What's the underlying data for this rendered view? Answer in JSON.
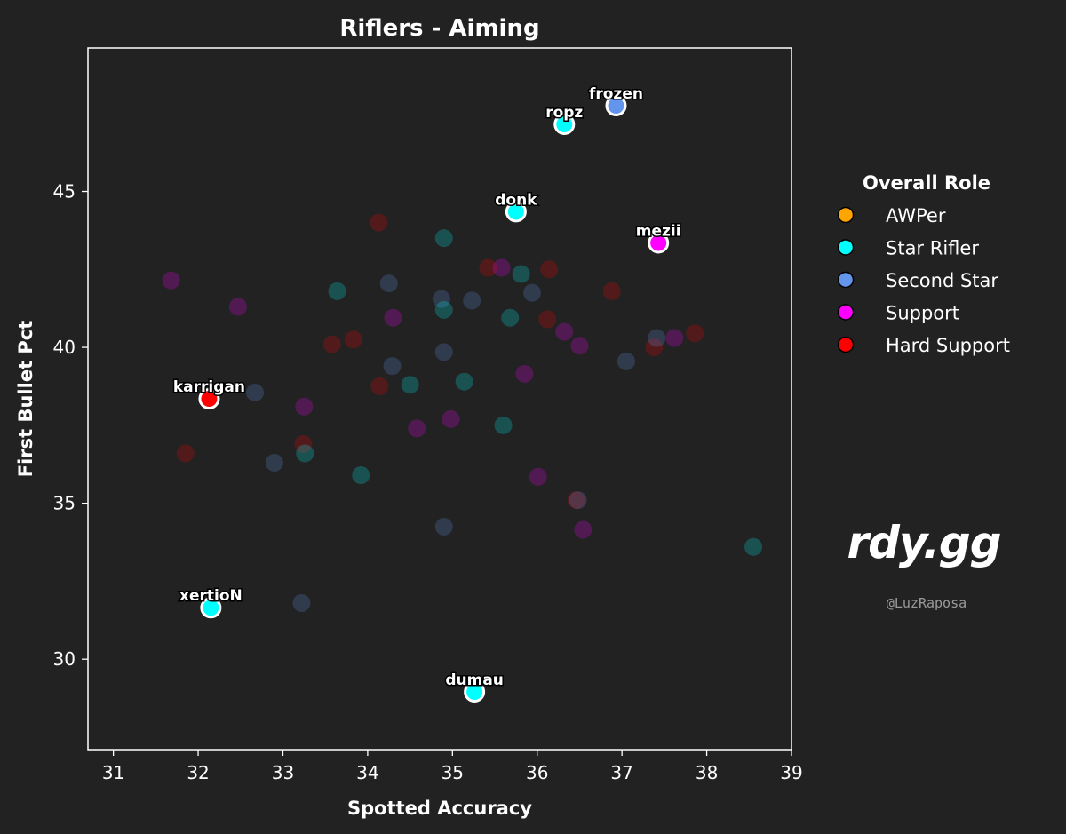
{
  "chart_data": {
    "type": "scatter",
    "title": "Riflers - Aiming",
    "xlabel": "Spotted Accuracy",
    "ylabel": "First Bullet Pct",
    "xlim": [
      30.7,
      39
    ],
    "ylim": [
      27.1,
      49.6
    ],
    "xticks": [
      31,
      32,
      33,
      34,
      35,
      36,
      37,
      38,
      39
    ],
    "yticks": [
      30,
      35,
      40,
      45
    ],
    "grid": false,
    "legend": {
      "title": "Overall Role",
      "placement": "right",
      "entries": [
        {
          "label": "AWPer",
          "color": "#ffa500"
        },
        {
          "label": "Star Rifler",
          "color": "#00ffff"
        },
        {
          "label": "Second Star",
          "color": "#6495ed"
        },
        {
          "label": "Support",
          "color": "#ff00ff"
        },
        {
          "label": "Hard Support",
          "color": "#ff0000"
        }
      ]
    },
    "highlighted": [
      {
        "name": "frozen",
        "x": 36.93,
        "y": 47.75,
        "role": "Second Star"
      },
      {
        "name": "ropz",
        "x": 36.32,
        "y": 47.15,
        "role": "Star Rifler"
      },
      {
        "name": "donk",
        "x": 35.75,
        "y": 44.35,
        "role": "Star Rifler"
      },
      {
        "name": "mezii",
        "x": 37.43,
        "y": 43.35,
        "role": "Support"
      },
      {
        "name": "karrigan",
        "x": 32.13,
        "y": 38.35,
        "role": "Hard Support"
      },
      {
        "name": "xertioN",
        "x": 32.15,
        "y": 31.65,
        "role": "Star Rifler"
      },
      {
        "name": "dumau",
        "x": 35.26,
        "y": 28.95,
        "role": "Star Rifler"
      }
    ],
    "background_points": [
      {
        "x": 31.68,
        "y": 42.15,
        "role": "Support"
      },
      {
        "x": 32.47,
        "y": 41.3,
        "role": "Support"
      },
      {
        "x": 31.85,
        "y": 36.6,
        "role": "Hard Support"
      },
      {
        "x": 32.67,
        "y": 38.55,
        "role": "Second Star"
      },
      {
        "x": 32.9,
        "y": 36.3,
        "role": "Second Star"
      },
      {
        "x": 33.22,
        "y": 31.8,
        "role": "Second Star"
      },
      {
        "x": 33.25,
        "y": 38.1,
        "role": "Support"
      },
      {
        "x": 33.24,
        "y": 36.9,
        "role": "Hard Support"
      },
      {
        "x": 33.26,
        "y": 36.6,
        "role": "Star Rifler"
      },
      {
        "x": 33.58,
        "y": 40.1,
        "role": "Hard Support"
      },
      {
        "x": 33.64,
        "y": 41.8,
        "role": "Star Rifler"
      },
      {
        "x": 33.83,
        "y": 40.25,
        "role": "Hard Support"
      },
      {
        "x": 33.92,
        "y": 35.9,
        "role": "Star Rifler"
      },
      {
        "x": 34.13,
        "y": 44.0,
        "role": "Hard Support"
      },
      {
        "x": 34.14,
        "y": 38.75,
        "role": "Hard Support"
      },
      {
        "x": 34.25,
        "y": 42.05,
        "role": "Second Star"
      },
      {
        "x": 34.29,
        "y": 39.4,
        "role": "Second Star"
      },
      {
        "x": 34.3,
        "y": 40.95,
        "role": "Support"
      },
      {
        "x": 34.5,
        "y": 38.8,
        "role": "Star Rifler"
      },
      {
        "x": 34.58,
        "y": 37.4,
        "role": "Support"
      },
      {
        "x": 34.87,
        "y": 41.55,
        "role": "Second Star"
      },
      {
        "x": 34.9,
        "y": 41.2,
        "role": "Star Rifler"
      },
      {
        "x": 34.9,
        "y": 43.5,
        "role": "Star Rifler"
      },
      {
        "x": 34.9,
        "y": 39.85,
        "role": "Second Star"
      },
      {
        "x": 34.9,
        "y": 34.25,
        "role": "Second Star"
      },
      {
        "x": 34.98,
        "y": 37.7,
        "role": "Support"
      },
      {
        "x": 35.14,
        "y": 38.9,
        "role": "Star Rifler"
      },
      {
        "x": 35.23,
        "y": 41.5,
        "role": "Second Star"
      },
      {
        "x": 35.42,
        "y": 42.55,
        "role": "Hard Support"
      },
      {
        "x": 35.58,
        "y": 42.55,
        "role": "Support"
      },
      {
        "x": 35.6,
        "y": 37.5,
        "role": "Star Rifler"
      },
      {
        "x": 35.68,
        "y": 40.95,
        "role": "Star Rifler"
      },
      {
        "x": 35.81,
        "y": 42.35,
        "role": "Star Rifler"
      },
      {
        "x": 35.85,
        "y": 39.15,
        "role": "Support"
      },
      {
        "x": 35.94,
        "y": 41.75,
        "role": "Second Star"
      },
      {
        "x": 36.01,
        "y": 35.85,
        "role": "Support"
      },
      {
        "x": 36.12,
        "y": 40.9,
        "role": "Hard Support"
      },
      {
        "x": 36.14,
        "y": 42.5,
        "role": "Hard Support"
      },
      {
        "x": 36.32,
        "y": 40.5,
        "role": "Support"
      },
      {
        "x": 36.46,
        "y": 35.1,
        "role": "Hard Support"
      },
      {
        "x": 36.48,
        "y": 35.1,
        "role": "Second Star"
      },
      {
        "x": 36.5,
        "y": 40.05,
        "role": "Support"
      },
      {
        "x": 36.54,
        "y": 34.15,
        "role": "Support"
      },
      {
        "x": 36.88,
        "y": 41.8,
        "role": "Hard Support"
      },
      {
        "x": 37.05,
        "y": 39.55,
        "role": "Second Star"
      },
      {
        "x": 37.38,
        "y": 40.0,
        "role": "Hard Support"
      },
      {
        "x": 37.41,
        "y": 40.3,
        "role": "Second Star"
      },
      {
        "x": 37.62,
        "y": 40.3,
        "role": "Support"
      },
      {
        "x": 37.86,
        "y": 40.45,
        "role": "Hard Support"
      },
      {
        "x": 38.55,
        "y": 33.6,
        "role": "Star Rifler"
      }
    ]
  },
  "watermark": {
    "brand": "rdy.gg",
    "handle": "@LuzRaposa"
  }
}
